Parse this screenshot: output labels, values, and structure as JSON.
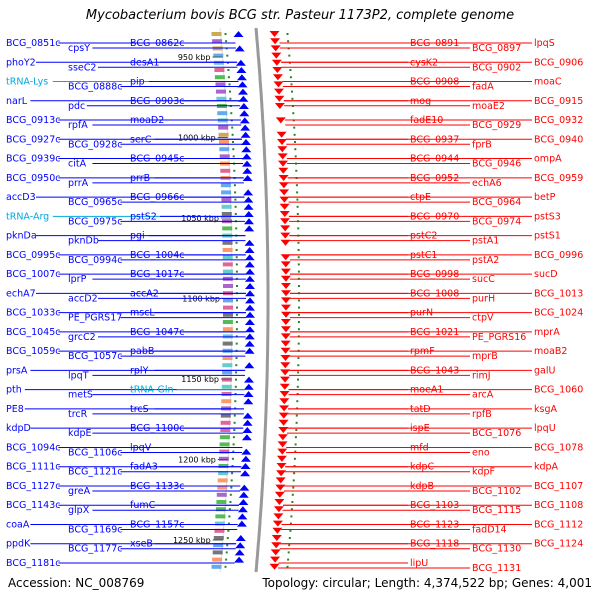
{
  "title": "Mycobacterium bovis BCG str. Pasteur 1173P2, complete genome",
  "footer": {
    "accession": "Accession: NC_008769",
    "topology": "Topology: circular; Length: 4,374,522 bp; Genes: 4,001"
  },
  "colors": {
    "minus_strand": "#0000ff",
    "plus_strand": "#ff0000",
    "rna": "#00aadd",
    "backbone": "#999999",
    "tick": "#555555"
  },
  "ticks": [
    "950 kbp",
    "1000 kbp",
    "1050 kbp",
    "1100 kbp",
    "1150 kbp",
    "1200 kbp",
    "1250 kbp"
  ],
  "left_labels": [
    {
      "text": "BCG_0851c",
      "kind": "gene"
    },
    {
      "text": "cpsY",
      "kind": "gene"
    },
    {
      "text": "BCG_0862c",
      "kind": "gene"
    },
    {
      "text": "phoY2",
      "kind": "gene"
    },
    {
      "text": "sseC2",
      "kind": "gene"
    },
    {
      "text": "desA1",
      "kind": "gene"
    },
    {
      "text": "tRNA-Lys",
      "kind": "rna"
    },
    {
      "text": "BCG_0888c",
      "kind": "gene"
    },
    {
      "text": "pip",
      "kind": "gene"
    },
    {
      "text": "narL",
      "kind": "gene"
    },
    {
      "text": "pdc",
      "kind": "gene"
    },
    {
      "text": "BCG_0903c",
      "kind": "gene"
    },
    {
      "text": "BCG_0913c",
      "kind": "gene"
    },
    {
      "text": "rpfA",
      "kind": "gene"
    },
    {
      "text": "moaD2",
      "kind": "gene"
    },
    {
      "text": "BCG_0927c",
      "kind": "gene"
    },
    {
      "text": "BCG_0928c",
      "kind": "gene"
    },
    {
      "text": "serC",
      "kind": "gene"
    },
    {
      "text": "BCG_0939c",
      "kind": "gene"
    },
    {
      "text": "citA",
      "kind": "gene"
    },
    {
      "text": "BCG_0945c",
      "kind": "gene"
    },
    {
      "text": "BCG_0950c",
      "kind": "gene"
    },
    {
      "text": "prrA",
      "kind": "gene"
    },
    {
      "text": "prrB",
      "kind": "gene"
    },
    {
      "text": "accD3",
      "kind": "gene"
    },
    {
      "text": "BCG_0965c",
      "kind": "gene"
    },
    {
      "text": "BCG_0966c",
      "kind": "gene"
    },
    {
      "text": "tRNA-Arg",
      "kind": "rna"
    },
    {
      "text": "BCG_0975c",
      "kind": "gene"
    },
    {
      "text": "pstS2",
      "kind": "gene"
    },
    {
      "text": "pknDa",
      "kind": "gene"
    },
    {
      "text": "pknDb",
      "kind": "gene"
    },
    {
      "text": "pgi",
      "kind": "gene"
    },
    {
      "text": "BCG_0995c",
      "kind": "gene"
    },
    {
      "text": "BCG_0994c",
      "kind": "gene"
    },
    {
      "text": "BCG_1004c",
      "kind": "gene"
    },
    {
      "text": "BCG_1007c",
      "kind": "gene"
    },
    {
      "text": "lprP",
      "kind": "gene"
    },
    {
      "text": "BCG_1017c",
      "kind": "gene"
    },
    {
      "text": "echA7",
      "kind": "gene"
    },
    {
      "text": "accD2",
      "kind": "gene"
    },
    {
      "text": "accA2",
      "kind": "gene"
    },
    {
      "text": "BCG_1033c",
      "kind": "gene"
    },
    {
      "text": "PE_PGRS17",
      "kind": "gene"
    },
    {
      "text": "mscL",
      "kind": "gene"
    },
    {
      "text": "BCG_1045c",
      "kind": "gene"
    },
    {
      "text": "grcC2",
      "kind": "gene"
    },
    {
      "text": "BCG_1047c",
      "kind": "gene"
    },
    {
      "text": "BCG_1059c",
      "kind": "gene"
    },
    {
      "text": "BCG_1057c",
      "kind": "gene"
    },
    {
      "text": "pabB",
      "kind": "gene"
    },
    {
      "text": "prsA",
      "kind": "gene"
    },
    {
      "text": "lpqT",
      "kind": "gene"
    },
    {
      "text": "rplY",
      "kind": "gene"
    },
    {
      "text": "pth",
      "kind": "gene"
    },
    {
      "text": "metS",
      "kind": "gene"
    },
    {
      "text": "tRNA-Gln",
      "kind": "rna"
    },
    {
      "text": "PE8",
      "kind": "gene"
    },
    {
      "text": "trcR",
      "kind": "gene"
    },
    {
      "text": "trcS",
      "kind": "gene"
    },
    {
      "text": "kdpD",
      "kind": "gene"
    },
    {
      "text": "kdpE",
      "kind": "gene"
    },
    {
      "text": "BCG_1100c",
      "kind": "gene"
    },
    {
      "text": "BCG_1094c",
      "kind": "gene"
    },
    {
      "text": "BCG_1106c",
      "kind": "gene"
    },
    {
      "text": "lpqV",
      "kind": "gene"
    },
    {
      "text": "BCG_1111c",
      "kind": "gene"
    },
    {
      "text": "BCG_1121c",
      "kind": "gene"
    },
    {
      "text": "fadA3",
      "kind": "gene"
    },
    {
      "text": "BCG_1127c",
      "kind": "gene"
    },
    {
      "text": "greA",
      "kind": "gene"
    },
    {
      "text": "BCG_1133c",
      "kind": "gene"
    },
    {
      "text": "BCG_1143c",
      "kind": "gene"
    },
    {
      "text": "glpX",
      "kind": "gene"
    },
    {
      "text": "fumC",
      "kind": "gene"
    },
    {
      "text": "coaA",
      "kind": "gene"
    },
    {
      "text": "BCG_1169c",
      "kind": "gene"
    },
    {
      "text": "BCG_1157c",
      "kind": "gene"
    },
    {
      "text": "ppdK",
      "kind": "gene"
    },
    {
      "text": "BCG_1177c",
      "kind": "gene"
    },
    {
      "text": "xseB",
      "kind": "gene"
    },
    {
      "text": "BCG_1181c",
      "kind": "gene"
    }
  ],
  "right_labels": [
    {
      "text": "BCG_0891",
      "kind": "gene"
    },
    {
      "text": "BCG_0897",
      "kind": "gene"
    },
    {
      "text": "lpqS",
      "kind": "gene"
    },
    {
      "text": "cysK2",
      "kind": "gene"
    },
    {
      "text": "BCG_0902",
      "kind": "gene"
    },
    {
      "text": "BCG_0906",
      "kind": "gene"
    },
    {
      "text": "BCG_0908",
      "kind": "gene"
    },
    {
      "text": "fadA",
      "kind": "gene"
    },
    {
      "text": "moaC",
      "kind": "gene"
    },
    {
      "text": "mog",
      "kind": "gene"
    },
    {
      "text": "moaE2",
      "kind": "gene"
    },
    {
      "text": "BCG_0915",
      "kind": "gene"
    },
    {
      "text": "fadE10",
      "kind": "gene"
    },
    {
      "text": "BCG_0929",
      "kind": "gene"
    },
    {
      "text": "BCG_0932",
      "kind": "gene"
    },
    {
      "text": "BCG_0937",
      "kind": "gene"
    },
    {
      "text": "fprB",
      "kind": "gene"
    },
    {
      "text": "BCG_0940",
      "kind": "gene"
    },
    {
      "text": "BCG_0944",
      "kind": "gene"
    },
    {
      "text": "BCG_0946",
      "kind": "gene"
    },
    {
      "text": "ompA",
      "kind": "gene"
    },
    {
      "text": "BCG_0952",
      "kind": "gene"
    },
    {
      "text": "echA6",
      "kind": "gene"
    },
    {
      "text": "BCG_0959",
      "kind": "gene"
    },
    {
      "text": "ctpE",
      "kind": "gene"
    },
    {
      "text": "BCG_0964",
      "kind": "gene"
    },
    {
      "text": "betP",
      "kind": "gene"
    },
    {
      "text": "BCG_0970",
      "kind": "gene"
    },
    {
      "text": "BCG_0974",
      "kind": "gene"
    },
    {
      "text": "pstS3",
      "kind": "gene"
    },
    {
      "text": "pstC2",
      "kind": "gene"
    },
    {
      "text": "pstA1",
      "kind": "gene"
    },
    {
      "text": "pstS1",
      "kind": "gene"
    },
    {
      "text": "pstC1",
      "kind": "gene"
    },
    {
      "text": "pstA2",
      "kind": "gene"
    },
    {
      "text": "BCG_0996",
      "kind": "gene"
    },
    {
      "text": "BCG_0998",
      "kind": "gene"
    },
    {
      "text": "sucC",
      "kind": "gene"
    },
    {
      "text": "sucD",
      "kind": "gene"
    },
    {
      "text": "BCG_1008",
      "kind": "gene"
    },
    {
      "text": "purH",
      "kind": "gene"
    },
    {
      "text": "BCG_1013",
      "kind": "gene"
    },
    {
      "text": "purN",
      "kind": "gene"
    },
    {
      "text": "ctpV",
      "kind": "gene"
    },
    {
      "text": "BCG_1024",
      "kind": "gene"
    },
    {
      "text": "BCG_1021",
      "kind": "gene"
    },
    {
      "text": "PE_PGRS16",
      "kind": "gene"
    },
    {
      "text": "mprA",
      "kind": "gene"
    },
    {
      "text": "rpmF",
      "kind": "gene"
    },
    {
      "text": "mprB",
      "kind": "gene"
    },
    {
      "text": "moaB2",
      "kind": "gene"
    },
    {
      "text": "BCG_1043",
      "kind": "gene"
    },
    {
      "text": "rimJ",
      "kind": "gene"
    },
    {
      "text": "galU",
      "kind": "gene"
    },
    {
      "text": "moeA1",
      "kind": "gene"
    },
    {
      "text": "arcA",
      "kind": "gene"
    },
    {
      "text": "BCG_1060",
      "kind": "gene"
    },
    {
      "text": "tatD",
      "kind": "gene"
    },
    {
      "text": "rpfB",
      "kind": "gene"
    },
    {
      "text": "ksgA",
      "kind": "gene"
    },
    {
      "text": "ispE",
      "kind": "gene"
    },
    {
      "text": "BCG_1076",
      "kind": "gene"
    },
    {
      "text": "lpqU",
      "kind": "gene"
    },
    {
      "text": "mfd",
      "kind": "gene"
    },
    {
      "text": "eno",
      "kind": "gene"
    },
    {
      "text": "BCG_1078",
      "kind": "gene"
    },
    {
      "text": "kdpC",
      "kind": "gene"
    },
    {
      "text": "kdpF",
      "kind": "gene"
    },
    {
      "text": "kdpA",
      "kind": "gene"
    },
    {
      "text": "kdpB",
      "kind": "gene"
    },
    {
      "text": "BCG_1102",
      "kind": "gene"
    },
    {
      "text": "BCG_1107",
      "kind": "gene"
    },
    {
      "text": "BCG_1103",
      "kind": "gene"
    },
    {
      "text": "BCG_1115",
      "kind": "gene"
    },
    {
      "text": "BCG_1108",
      "kind": "gene"
    },
    {
      "text": "BCG_1123",
      "kind": "gene"
    },
    {
      "text": "fadD14",
      "kind": "gene"
    },
    {
      "text": "BCG_1112",
      "kind": "gene"
    },
    {
      "text": "BCG_1118",
      "kind": "gene"
    },
    {
      "text": "BCG_1130",
      "kind": "gene"
    },
    {
      "text": "BCG_1124",
      "kind": "gene"
    },
    {
      "text": "lipU",
      "kind": "gene"
    },
    {
      "text": "BCG_1131",
      "kind": "gene"
    }
  ]
}
